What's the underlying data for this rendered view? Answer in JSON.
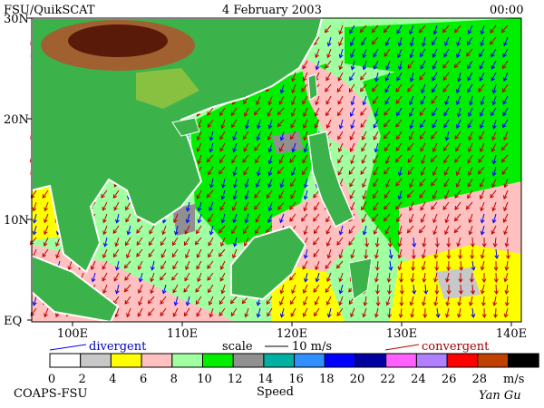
{
  "header": {
    "source": "FSU/QuikSCAT",
    "date": "4 February 2003",
    "time": "00:00"
  },
  "axes": {
    "lat_labels": [
      "30N",
      "20N",
      "10N",
      "EQ"
    ],
    "lon_labels": [
      "100E",
      "110E",
      "120E",
      "130E",
      "140E"
    ]
  },
  "legend": {
    "divergent": "divergent",
    "scale": "scale",
    "scale_value": "10 m/s",
    "convergent": "convergent"
  },
  "colorbar": {
    "labels": [
      0,
      2,
      4,
      6,
      8,
      10,
      12,
      14,
      16,
      18,
      20,
      22,
      24,
      26,
      28
    ],
    "unit": "m/s",
    "title": "Speed",
    "colors": [
      "#ffffff",
      "#c8c8c8",
      "#ffff00",
      "#ffc0c0",
      "#a0ffa0",
      "#00ee00",
      "#909090",
      "#00b0a0",
      "#3090ff",
      "#0000ff",
      "#0000a0",
      "#ff60ff",
      "#b080ff",
      "#ff0000",
      "#c04000"
    ]
  },
  "footer": {
    "left": "COAPS-FSU",
    "right": "Yan Gu"
  }
}
